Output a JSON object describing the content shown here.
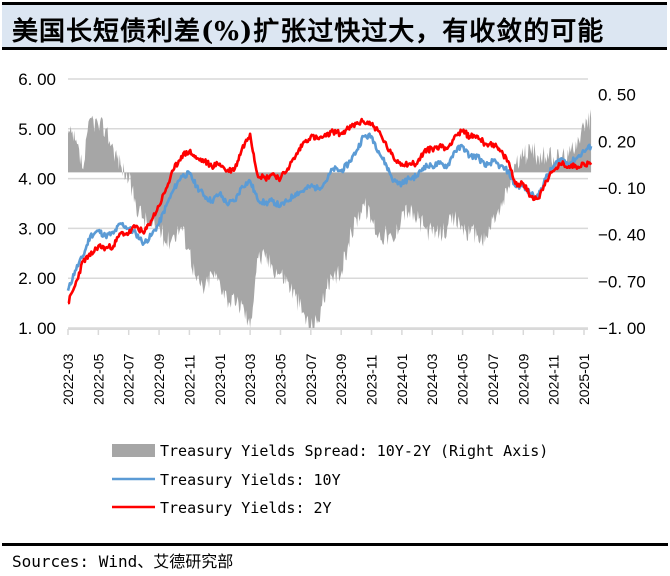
{
  "title": "美国长短债利差(%)扩张过快过大，有收敛的可能",
  "source": "Sources: Wind、艾德研究部",
  "colors": {
    "title_bg": "#dce6f2",
    "spread": "#a6a6a6",
    "y10": "#5b9bd5",
    "y2": "#ff0000",
    "grid": "#d9d9d9"
  },
  "chart_data": {
    "type": "line",
    "title": "美国长短债利差(%)扩张过快过大，有收敛的可能",
    "xlabel": "",
    "ylabel": "",
    "y_left": {
      "ticks": [
        "6.00",
        "5.00",
        "4.00",
        "3.00",
        "2.00",
        "1.00"
      ],
      "range": [
        1.0,
        6.0
      ]
    },
    "y_right": {
      "ticks": [
        "0.50",
        "0.20",
        "−0.10",
        "−0.40",
        "−0.70",
        "−1.00"
      ],
      "range": [
        -1.0,
        0.6
      ]
    },
    "x_ticks": [
      "2022-03",
      "2022-05",
      "2022-07",
      "2022-09",
      "2022-11",
      "2023-01",
      "2023-03",
      "2023-05",
      "2023-07",
      "2023-09",
      "2023-11",
      "2024-01",
      "2024-03",
      "2024-05",
      "2024-07",
      "2024-09",
      "2024-11",
      "2025-01"
    ],
    "grid": true,
    "legend_position": "bottom",
    "x": [
      "2022-03-01",
      "2022-03-15",
      "2022-04-01",
      "2022-04-15",
      "2022-05-01",
      "2022-05-15",
      "2022-06-01",
      "2022-06-15",
      "2022-07-01",
      "2022-07-15",
      "2022-08-01",
      "2022-08-15",
      "2022-09-01",
      "2022-09-15",
      "2022-10-01",
      "2022-10-15",
      "2022-11-01",
      "2022-11-15",
      "2022-12-01",
      "2022-12-15",
      "2023-01-01",
      "2023-01-15",
      "2023-02-01",
      "2023-02-15",
      "2023-03-01",
      "2023-03-15",
      "2023-04-01",
      "2023-04-15",
      "2023-05-01",
      "2023-05-15",
      "2023-06-01",
      "2023-06-15",
      "2023-07-01",
      "2023-07-15",
      "2023-08-01",
      "2023-08-15",
      "2023-09-01",
      "2023-09-15",
      "2023-10-01",
      "2023-10-15",
      "2023-11-01",
      "2023-11-15",
      "2023-12-01",
      "2023-12-15",
      "2024-01-01",
      "2024-01-15",
      "2024-02-01",
      "2024-02-15",
      "2024-03-01",
      "2024-03-15",
      "2024-04-01",
      "2024-04-15",
      "2024-05-01",
      "2024-05-15",
      "2024-06-01",
      "2024-06-15",
      "2024-07-01",
      "2024-07-15",
      "2024-08-01",
      "2024-08-15",
      "2024-09-01",
      "2024-09-15",
      "2024-10-01",
      "2024-10-15",
      "2024-11-01",
      "2024-11-15",
      "2024-12-01",
      "2024-12-15",
      "2025-01-01",
      "2025-01-15"
    ],
    "series": [
      {
        "name": "Treasury Yields Spread: 10Y-2Y (Right Axis)",
        "axis": "right",
        "type": "area",
        "values": [
          0.25,
          0.2,
          0.02,
          0.35,
          0.3,
          0.28,
          0.15,
          0.05,
          -0.05,
          -0.2,
          -0.3,
          -0.35,
          -0.35,
          -0.45,
          -0.4,
          -0.35,
          -0.5,
          -0.7,
          -0.75,
          -0.65,
          -0.7,
          -0.8,
          -0.85,
          -0.85,
          -1.0,
          -0.55,
          -0.55,
          -0.6,
          -0.65,
          -0.7,
          -0.8,
          -0.9,
          -1.0,
          -0.95,
          -0.75,
          -0.7,
          -0.65,
          -0.45,
          -0.3,
          -0.2,
          -0.3,
          -0.4,
          -0.4,
          -0.45,
          -0.25,
          -0.25,
          -0.3,
          -0.35,
          -0.4,
          -0.4,
          -0.35,
          -0.3,
          -0.35,
          -0.4,
          -0.4,
          -0.45,
          -0.3,
          -0.25,
          -0.1,
          0.05,
          0.1,
          0.15,
          0.1,
          0.1,
          0.1,
          0.1,
          0.1,
          0.2,
          0.3,
          0.35
        ]
      },
      {
        "name": "Treasury Yields: 10Y",
        "axis": "left",
        "type": "line",
        "values": [
          1.75,
          2.15,
          2.45,
          2.85,
          2.95,
          2.85,
          2.9,
          3.1,
          3.0,
          2.9,
          2.7,
          2.85,
          3.1,
          3.45,
          3.8,
          4.05,
          4.1,
          3.85,
          3.65,
          3.55,
          3.7,
          3.5,
          3.55,
          3.85,
          3.95,
          3.6,
          3.5,
          3.55,
          3.45,
          3.55,
          3.7,
          3.75,
          3.85,
          3.8,
          3.95,
          4.2,
          4.15,
          4.3,
          4.55,
          4.85,
          4.85,
          4.55,
          4.25,
          3.95,
          3.9,
          4.0,
          4.05,
          4.25,
          4.25,
          4.3,
          4.25,
          4.55,
          4.65,
          4.45,
          4.45,
          4.25,
          4.35,
          4.25,
          4.15,
          3.85,
          3.85,
          3.7,
          3.65,
          4.0,
          4.25,
          4.4,
          4.3,
          4.4,
          4.55,
          4.65
        ]
      },
      {
        "name": "Treasury Yields: 2Y",
        "axis": "left",
        "type": "line",
        "values": [
          1.5,
          1.85,
          2.35,
          2.45,
          2.65,
          2.6,
          2.65,
          2.9,
          2.9,
          3.05,
          2.9,
          3.15,
          3.45,
          3.8,
          4.2,
          4.45,
          4.55,
          4.4,
          4.35,
          4.25,
          4.3,
          4.15,
          4.2,
          4.6,
          4.9,
          4.1,
          4.0,
          4.1,
          4.0,
          4.2,
          4.45,
          4.7,
          4.85,
          4.8,
          4.85,
          4.95,
          4.9,
          5.0,
          5.1,
          5.15,
          5.1,
          4.95,
          4.65,
          4.4,
          4.3,
          4.3,
          4.3,
          4.55,
          4.6,
          4.65,
          4.6,
          4.85,
          4.95,
          4.85,
          4.85,
          4.7,
          4.7,
          4.55,
          4.35,
          3.9,
          3.9,
          3.65,
          3.6,
          3.95,
          4.15,
          4.3,
          4.25,
          4.25,
          4.3,
          4.28
        ]
      }
    ]
  },
  "legend": [
    {
      "label": "Treasury Yields Spread: 10Y-2Y (Right Axis)",
      "kind": "area"
    },
    {
      "label": "Treasury Yields: 10Y",
      "kind": "line"
    },
    {
      "label": "Treasury Yields: 2Y",
      "kind": "line"
    }
  ]
}
